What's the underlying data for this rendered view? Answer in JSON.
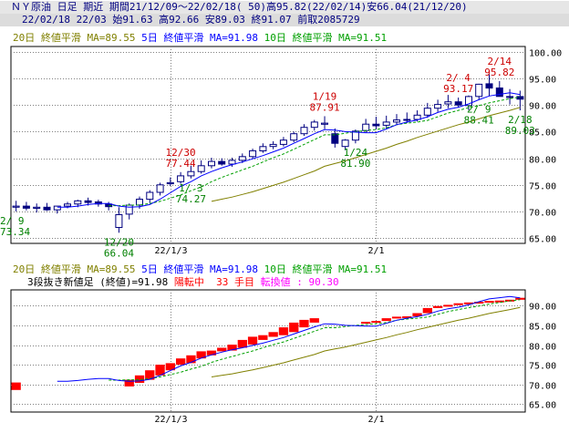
{
  "header": {
    "line1": "ＮＹ原油 日足 期近 期間21/12/09～22/02/18( 50)高95.82(22/02/14)安66.04(21/12/20)",
    "line2": "22/02/18 22/03 始91.63 高92.66 安89.03 終91.07 前取2085729"
  },
  "ma_labels": {
    "ma20": "20日 終値平滑 MA=89.55",
    "ma5": "5日 終値平滑 MA=91.98",
    "ma10": "10日 終値平滑 MA=91.51"
  },
  "status": {
    "method": "3段抜き新値足 (終値)=91.98",
    "trend": "陽転中",
    "count": "33 手目",
    "reversal": "転換値 : 90.30"
  },
  "colors": {
    "up_body": "#ffffff",
    "down_body": "#000080",
    "candle_line": "#000080",
    "ma5": "#0000ff",
    "ma10": "#00a000",
    "ma20": "#808000",
    "newprice_up": "#ff0000",
    "grid": "#808080",
    "annotation_high": "#cc0000",
    "annotation_low": "#008000"
  },
  "chart_data": [
    {
      "type": "candlestick",
      "title": "",
      "xlabel": "",
      "ylabel": "",
      "ylim": [
        64,
        101
      ],
      "yticks": [
        "100.00",
        "95.00",
        "90.00",
        "85.00",
        "80.00",
        "75.00",
        "70.00",
        "65.00"
      ],
      "ytick_values": [
        100,
        95,
        90,
        85,
        80,
        75,
        70,
        65
      ],
      "xtick_labels": [
        "22/1/3",
        "2/1"
      ],
      "xtick_index": [
        15,
        35
      ],
      "grid": true,
      "series": [
        {
          "name": "ohlc",
          "open": [
            70.8,
            71.0,
            70.6,
            70.8,
            70.3,
            71.0,
            71.4,
            72.0,
            71.8,
            71.4,
            67.0,
            69.5,
            71.2,
            72.3,
            73.6,
            75.2,
            75.6,
            76.7,
            77.5,
            78.6,
            79.4,
            78.9,
            79.6,
            80.3,
            81.4,
            82.2,
            82.6,
            83.4,
            84.6,
            85.8,
            86.4,
            84.6,
            82.2,
            83.4,
            85.2,
            86.4,
            86.2,
            86.8,
            87.2,
            87.3,
            88.1,
            89.4,
            90.2,
            90.6,
            89.9,
            91.6,
            94.0,
            93.2,
            91.6,
            91.6
          ],
          "high": [
            72.0,
            71.8,
            71.5,
            71.6,
            71.0,
            71.8,
            72.2,
            72.6,
            72.2,
            71.8,
            70.8,
            71.5,
            72.8,
            74.0,
            75.4,
            76.4,
            77.4,
            78.6,
            79.6,
            80.1,
            80.0,
            80.1,
            80.9,
            81.8,
            82.8,
            83.2,
            84.0,
            85.0,
            86.4,
            87.2,
            87.9,
            85.6,
            83.6,
            85.4,
            87.4,
            87.8,
            88.0,
            88.3,
            88.6,
            89.0,
            90.4,
            91.0,
            91.9,
            91.4,
            91.8,
            94.0,
            95.8,
            94.5,
            93.0,
            92.7
          ],
          "low": [
            70.0,
            70.2,
            69.8,
            70.1,
            69.6,
            70.6,
            70.8,
            71.1,
            70.9,
            70.2,
            66.0,
            68.5,
            70.5,
            71.6,
            73.0,
            74.8,
            75.2,
            76.2,
            77.1,
            78.1,
            78.6,
            78.4,
            79.1,
            79.9,
            81.0,
            81.7,
            82.2,
            83.0,
            84.2,
            85.2,
            85.5,
            82.0,
            81.5,
            82.8,
            84.8,
            85.4,
            85.6,
            86.2,
            86.6,
            86.9,
            87.6,
            88.7,
            89.4,
            89.5,
            89.0,
            91.0,
            91.7,
            91.8,
            90.1,
            89.0
          ],
          "close": [
            71.0,
            70.6,
            70.8,
            70.3,
            71.0,
            71.4,
            72.0,
            71.7,
            71.4,
            70.9,
            69.4,
            71.2,
            72.3,
            73.6,
            75.0,
            75.4,
            76.7,
            77.5,
            78.6,
            79.4,
            78.9,
            79.6,
            80.3,
            81.4,
            82.2,
            82.6,
            83.4,
            84.6,
            85.8,
            86.8,
            86.6,
            82.8,
            83.4,
            85.1,
            86.4,
            86.1,
            86.8,
            87.2,
            87.3,
            88.1,
            89.4,
            90.1,
            90.6,
            90.0,
            91.6,
            93.9,
            93.2,
            91.6,
            91.6,
            91.1
          ]
        },
        {
          "name": "5日",
          "values": [
            null,
            null,
            null,
            null,
            70.8,
            70.8,
            71.0,
            71.3,
            71.5,
            71.5,
            71.0,
            70.8,
            70.9,
            71.3,
            72.3,
            73.5,
            74.7,
            75.6,
            76.7,
            77.5,
            78.2,
            78.8,
            79.3,
            79.9,
            80.5,
            81.2,
            81.9,
            82.8,
            83.7,
            84.6,
            85.4,
            85.3,
            85.0,
            84.9,
            84.8,
            84.8,
            85.5,
            86.3,
            86.8,
            87.2,
            87.8,
            88.6,
            89.2,
            89.6,
            90.2,
            91.0,
            91.7,
            92.0,
            92.3,
            91.98
          ]
        },
        {
          "name": "10日",
          "values": [
            null,
            null,
            null,
            null,
            null,
            null,
            null,
            null,
            null,
            71.1,
            71.1,
            71.2,
            71.2,
            71.5,
            71.9,
            72.5,
            73.1,
            73.9,
            74.6,
            75.6,
            76.4,
            77.1,
            77.8,
            78.5,
            79.3,
            80.1,
            80.8,
            81.7,
            82.6,
            83.5,
            84.4,
            84.4,
            84.7,
            85.0,
            85.2,
            85.4,
            85.7,
            86.3,
            86.6,
            86.8,
            87.1,
            87.8,
            88.5,
            89.0,
            89.5,
            89.9,
            90.4,
            90.8,
            91.2,
            91.51
          ]
        },
        {
          "name": "20日",
          "values": [
            null,
            null,
            null,
            null,
            null,
            null,
            null,
            null,
            null,
            null,
            null,
            null,
            null,
            null,
            null,
            null,
            null,
            null,
            null,
            71.9,
            72.3,
            72.7,
            73.2,
            73.7,
            74.3,
            74.9,
            75.5,
            76.2,
            76.9,
            77.6,
            78.5,
            79.0,
            79.5,
            80.1,
            80.7,
            81.3,
            81.9,
            82.6,
            83.2,
            83.9,
            84.5,
            85.1,
            85.7,
            86.3,
            86.8,
            87.4,
            88.0,
            88.5,
            89.0,
            89.55
          ]
        }
      ],
      "annotations": [
        {
          "label": "2/ 9",
          "value": "73.34",
          "index": 0,
          "kind": "low"
        },
        {
          "label": "12/20",
          "value": "66.04",
          "index": 10,
          "kind": "low"
        },
        {
          "label": "12/30",
          "value": "77.44",
          "index": 16,
          "kind": "high"
        },
        {
          "label": "1/ 3",
          "value": "74.27",
          "index": 17,
          "kind": "low"
        },
        {
          "label": "1/19",
          "value": "87.91",
          "index": 30,
          "kind": "high"
        },
        {
          "label": "1/24",
          "value": "81.90",
          "index": 33,
          "kind": "low"
        },
        {
          "label": "2/ 4",
          "value": "93.17",
          "index": 43,
          "kind": "high"
        },
        {
          "label": "2/ 9",
          "value": "88.41",
          "index": 45,
          "kind": "low"
        },
        {
          "label": "2/14",
          "value": "95.82",
          "index": 47,
          "kind": "high"
        },
        {
          "label": "2/18",
          "value": "89.03",
          "index": 49,
          "kind": "low"
        }
      ]
    },
    {
      "type": "bar",
      "title": "",
      "xlabel": "",
      "ylabel": "",
      "ylim": [
        63,
        94
      ],
      "yticks": [
        "90.00",
        "85.00",
        "80.00",
        "75.00",
        "70.00",
        "65.00"
      ],
      "ytick_values": [
        90,
        85,
        80,
        75,
        70,
        65
      ],
      "xtick_labels": [
        "22/1/3",
        "2/1"
      ],
      "xtick_index": [
        15,
        35
      ],
      "grid": true,
      "series": [
        {
          "name": "新値足",
          "low": [
            68.6,
            null,
            null,
            null,
            null,
            null,
            null,
            null,
            null,
            null,
            null,
            69.5,
            70.4,
            71.2,
            72.3,
            73.6,
            75.0,
            75.4,
            76.6,
            77.4,
            78.4,
            78.6,
            79.3,
            80.1,
            81.3,
            82.1,
            82.5,
            83.3,
            84.5,
            85.7,
            null,
            null,
            null,
            null,
            85.5,
            85.9,
            86.1,
            86.8,
            87.2,
            87.3,
            88.1,
            89.4,
            89.9,
            90.2,
            90.6,
            90.8,
            91.0,
            91.2,
            91.3,
            91.5
          ],
          "high": [
            70.5,
            null,
            null,
            null,
            null,
            null,
            null,
            null,
            null,
            null,
            null,
            71.2,
            72.3,
            73.6,
            75.0,
            75.4,
            76.6,
            77.4,
            78.4,
            78.6,
            79.3,
            80.1,
            81.3,
            82.1,
            82.5,
            83.3,
            84.5,
            85.7,
            86.4,
            86.8,
            null,
            null,
            null,
            null,
            85.9,
            86.1,
            86.8,
            87.2,
            87.3,
            88.1,
            89.4,
            89.9,
            90.2,
            90.6,
            90.8,
            91.0,
            91.2,
            91.3,
            91.5,
            91.98
          ]
        },
        {
          "name": "5日",
          "values": [
            null,
            null,
            null,
            null,
            70.8,
            70.8,
            71.0,
            71.3,
            71.5,
            71.5,
            71.0,
            70.8,
            70.9,
            71.3,
            72.3,
            73.5,
            74.7,
            75.6,
            76.7,
            77.5,
            78.2,
            78.8,
            79.3,
            79.9,
            80.5,
            81.2,
            81.9,
            82.8,
            83.7,
            84.6,
            85.4,
            85.3,
            85.0,
            84.9,
            84.8,
            84.8,
            85.5,
            86.3,
            86.8,
            87.2,
            87.8,
            88.6,
            89.2,
            89.6,
            90.2,
            91.0,
            91.7,
            92.0,
            92.3,
            91.98
          ]
        },
        {
          "name": "10日",
          "values": [
            null,
            null,
            null,
            null,
            null,
            null,
            null,
            null,
            null,
            71.1,
            71.1,
            71.2,
            71.2,
            71.5,
            71.9,
            72.5,
            73.1,
            73.9,
            74.6,
            75.6,
            76.4,
            77.1,
            77.8,
            78.5,
            79.3,
            80.1,
            80.8,
            81.7,
            82.6,
            83.5,
            84.4,
            84.4,
            84.7,
            85.0,
            85.2,
            85.4,
            85.7,
            86.3,
            86.6,
            86.8,
            87.1,
            87.8,
            88.5,
            89.0,
            89.5,
            89.9,
            90.4,
            90.8,
            91.2,
            91.51
          ]
        },
        {
          "name": "20日",
          "values": [
            null,
            null,
            null,
            null,
            null,
            null,
            null,
            null,
            null,
            null,
            null,
            null,
            null,
            null,
            null,
            null,
            null,
            null,
            null,
            71.9,
            72.3,
            72.7,
            73.2,
            73.7,
            74.3,
            74.9,
            75.5,
            76.2,
            76.9,
            77.6,
            78.5,
            79.0,
            79.5,
            80.1,
            80.7,
            81.3,
            81.9,
            82.6,
            83.2,
            83.9,
            84.5,
            85.1,
            85.7,
            86.3,
            86.8,
            87.4,
            88.0,
            88.5,
            89.0,
            89.55
          ]
        }
      ]
    }
  ]
}
